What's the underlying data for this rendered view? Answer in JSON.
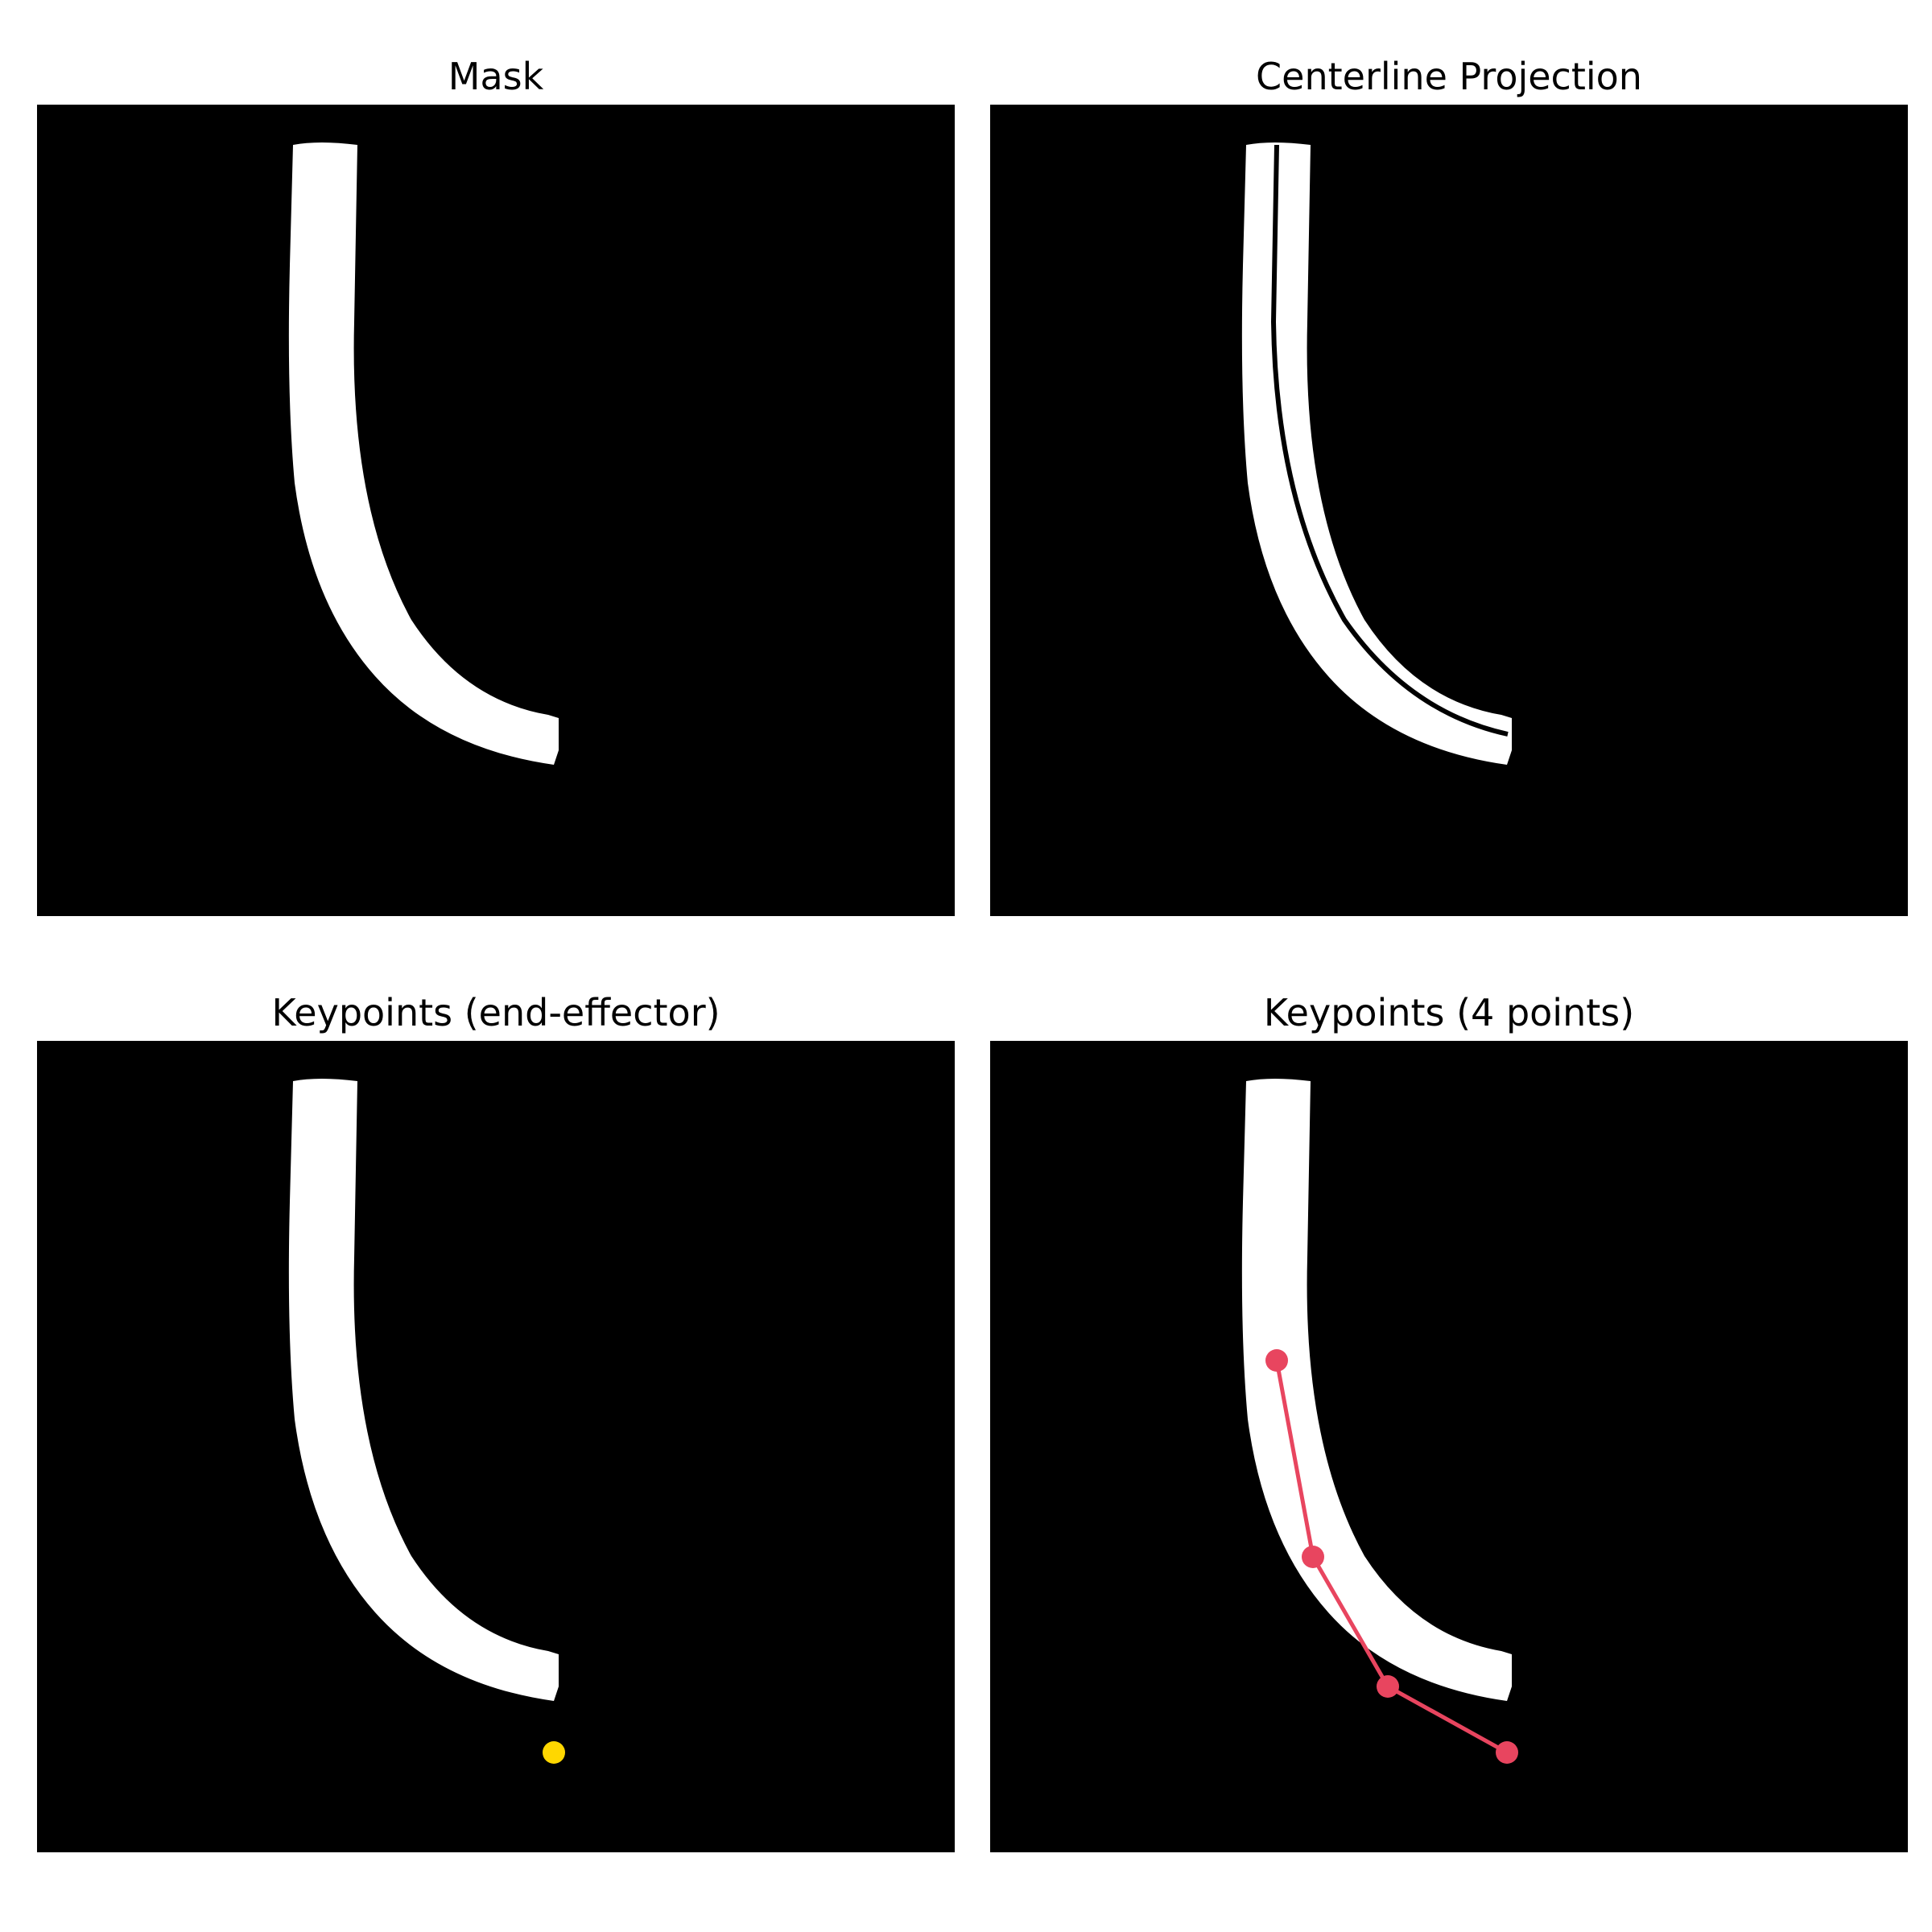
{
  "panels": [
    {
      "title": "Mask"
    },
    {
      "title": "Centerline Projection"
    },
    {
      "title": "Keypoints (end-effector)"
    },
    {
      "title": "Keypoints (4 points)"
    }
  ],
  "colors": {
    "background": "#000000",
    "mask": "#ffffff",
    "centerline": "#000000",
    "end_effector_marker": "#ffd700",
    "keypoint_marker": "#e8455f"
  },
  "icons": {
    "end_effector": "yellow-dot-icon",
    "keypoint": "red-dot-icon"
  }
}
